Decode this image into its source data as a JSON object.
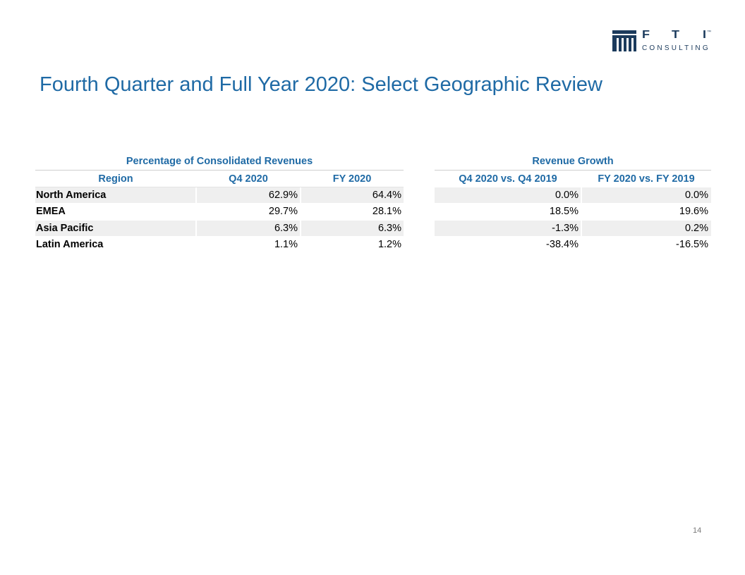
{
  "logo": {
    "letters": [
      "F",
      "T",
      "I"
    ],
    "trademark": "™",
    "sub": "CONSULTING",
    "color": "#1b3a5c"
  },
  "title": "Fourth Quarter and Full Year 2020: Select Geographic Review",
  "left_table": {
    "heading": "Percentage of Consolidated Revenues",
    "columns": [
      "Region",
      "Q4 2020",
      "FY 2020"
    ]
  },
  "right_table": {
    "heading": "Revenue Growth",
    "columns": [
      "Q4 2020 vs. Q4 2019",
      "FY 2020 vs. FY 2019"
    ]
  },
  "rows": [
    {
      "region": "North America",
      "q4_pct": "62.9%",
      "fy_pct": "64.4%",
      "q4_growth": "0.0%",
      "fy_growth": "0.0%"
    },
    {
      "region": "EMEA",
      "q4_pct": "29.7%",
      "fy_pct": "28.1%",
      "q4_growth": "18.5%",
      "fy_growth": "19.6%"
    },
    {
      "region": "Asia Pacific",
      "q4_pct": "6.3%",
      "fy_pct": "6.3%",
      "q4_growth": "-1.3%",
      "fy_growth": "0.2%"
    },
    {
      "region": "Latin America",
      "q4_pct": "1.1%",
      "fy_pct": "1.2%",
      "q4_growth": "-38.4%",
      "fy_growth": "-16.5%"
    }
  ],
  "page_number": "14",
  "colors": {
    "accent": "#1f6aa5",
    "row_shade": "#efefef"
  }
}
